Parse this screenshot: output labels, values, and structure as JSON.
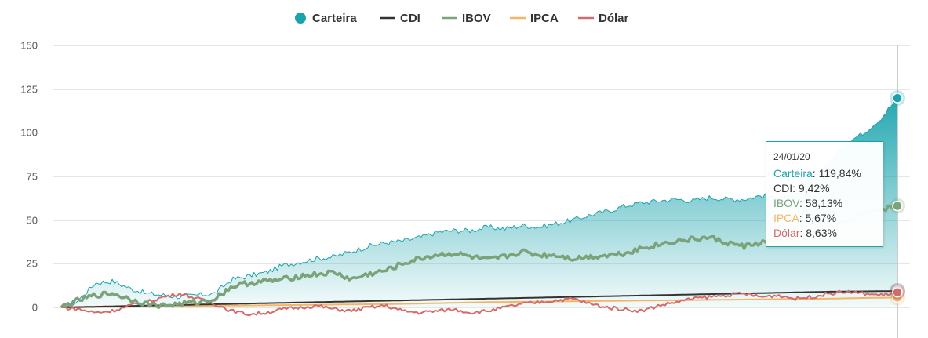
{
  "colors": {
    "carteira": "#1aa3ad",
    "cdi": "#333333",
    "ibov": "#7ba37a",
    "ipca": "#f5b564",
    "dolar": "#d46a6a"
  },
  "chart_data": {
    "type": "line",
    "title": "",
    "xlabel": "",
    "ylabel": "",
    "ylim": [
      0,
      150
    ],
    "y_ticks": [
      "0",
      "25",
      "50",
      "75",
      "100",
      "125",
      "150"
    ],
    "grid": true,
    "legend_position": "top-center",
    "x_end_label": "24/01/20",
    "series": [
      {
        "name": "Carteira",
        "style": "area",
        "values": [
          0,
          4,
          14,
          15,
          11,
          8,
          7,
          6,
          7,
          8,
          16,
          18,
          20,
          24,
          26,
          28,
          29,
          32,
          35,
          37,
          38,
          40,
          43,
          44,
          44,
          46,
          45,
          47,
          46,
          48,
          50,
          53,
          55,
          58,
          60,
          61,
          62,
          61,
          63,
          62,
          62,
          64,
          63,
          66,
          75,
          83,
          94,
          100,
          108,
          119.84
        ]
      },
      {
        "name": "CDI",
        "values": [
          0,
          0.2,
          0.4,
          0.6,
          0.8,
          1,
          1.2,
          1.4,
          1.6,
          1.8,
          2,
          2.2,
          2.4,
          2.6,
          2.8,
          3,
          3.2,
          3.4,
          3.6,
          3.8,
          4,
          4.2,
          4.4,
          4.6,
          4.8,
          5,
          5.2,
          5.4,
          5.6,
          5.8,
          6,
          6.2,
          6.4,
          6.6,
          6.8,
          7,
          7.2,
          7.4,
          7.6,
          7.8,
          8,
          8.2,
          8.4,
          8.6,
          8.8,
          9,
          9.1,
          9.2,
          9.3,
          9.42
        ]
      },
      {
        "name": "IBOV",
        "values": [
          0,
          4,
          7,
          8,
          5,
          2,
          1,
          2,
          3,
          5,
          12,
          14,
          15,
          16,
          18,
          19,
          20,
          16,
          19,
          21,
          25,
          28,
          30,
          31,
          29,
          27,
          29,
          32,
          30,
          30,
          28,
          29,
          30,
          31,
          34,
          36,
          38,
          39,
          40,
          37,
          35,
          37,
          38,
          40,
          41,
          45,
          49,
          53,
          56,
          58.13
        ]
      },
      {
        "name": "IPCA",
        "values": [
          0,
          0.1,
          0.2,
          0.3,
          0.4,
          0.5,
          0.6,
          0.7,
          0.8,
          0.9,
          1.0,
          1.1,
          1.2,
          1.3,
          1.4,
          1.5,
          1.6,
          1.7,
          1.8,
          1.9,
          2.0,
          2.2,
          2.4,
          2.6,
          2.8,
          3.0,
          3.1,
          3.2,
          3.3,
          3.4,
          3.5,
          3.6,
          3.7,
          3.8,
          3.9,
          4.0,
          4.1,
          4.2,
          4.3,
          4.4,
          4.5,
          4.6,
          4.7,
          4.8,
          4.9,
          5.0,
          5.2,
          5.4,
          5.5,
          5.67
        ]
      },
      {
        "name": "Dólar",
        "values": [
          0,
          -1,
          -3,
          -2,
          1,
          3,
          6,
          8,
          5,
          2,
          -2,
          -4,
          -3,
          -1,
          0,
          1,
          -1,
          -2,
          0,
          1,
          -2,
          -3,
          -2,
          -1,
          -3,
          -2,
          0,
          2,
          3,
          4,
          5,
          2,
          0,
          -1,
          -2,
          1,
          3,
          5,
          6,
          7,
          8,
          6,
          7,
          5,
          6,
          8,
          9,
          8,
          7,
          8.63
        ]
      }
    ]
  },
  "legend": [
    {
      "label": "Carteira",
      "marker": "circle",
      "color": "#1aa3ad"
    },
    {
      "label": "CDI",
      "marker": "line",
      "color": "#333333"
    },
    {
      "label": "IBOV",
      "marker": "line",
      "color": "#7ba37a"
    },
    {
      "label": "IPCA",
      "marker": "line",
      "color": "#f5b564"
    },
    {
      "label": "Dólar",
      "marker": "line",
      "color": "#d46a6a"
    }
  ],
  "tooltip": {
    "date": "24/01/20",
    "rows": [
      {
        "name": "Carteira",
        "value": "119,84%",
        "color": "#1aa3ad"
      },
      {
        "name": "CDI",
        "value": "9,42%",
        "color": "#333333"
      },
      {
        "name": "IBOV",
        "value": "58,13%",
        "color": "#7ba37a"
      },
      {
        "name": "IPCA",
        "value": "5,67%",
        "color": "#f5b564"
      },
      {
        "name": "Dólar",
        "value": "8,63%",
        "color": "#d46a6a"
      }
    ]
  }
}
